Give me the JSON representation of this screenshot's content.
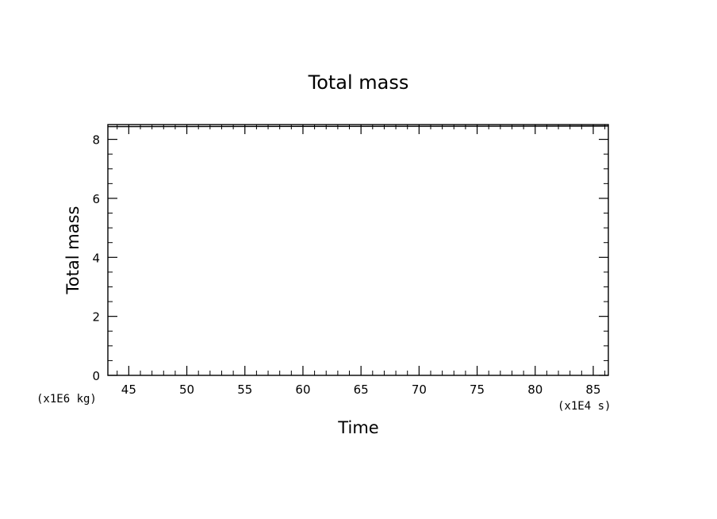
{
  "chart_data": {
    "type": "line",
    "title": "Total mass",
    "xlabel": "Time",
    "ylabel": "Total mass",
    "x_unit": "(x1E4 s)",
    "y_unit": "(x1E6 kg)",
    "xlim": [
      43.2,
      86.3
    ],
    "ylim": [
      0,
      8.5
    ],
    "x_ticks": [
      45,
      50,
      55,
      60,
      65,
      70,
      75,
      80,
      85
    ],
    "x_tick_labels": [
      "45",
      "50",
      "55",
      "60",
      "65",
      "70",
      "75",
      "80",
      "85"
    ],
    "y_ticks": [
      0,
      2,
      4,
      6,
      8
    ],
    "y_tick_labels": [
      "0",
      "2",
      "4",
      "6",
      "8"
    ],
    "x_minor_step": 1,
    "y_minor_step": 0.5,
    "grid": false,
    "series": [
      {
        "x": [
          43.2,
          86.3
        ],
        "y": [
          8.43,
          8.45
        ]
      }
    ],
    "line_color": "#000000"
  }
}
